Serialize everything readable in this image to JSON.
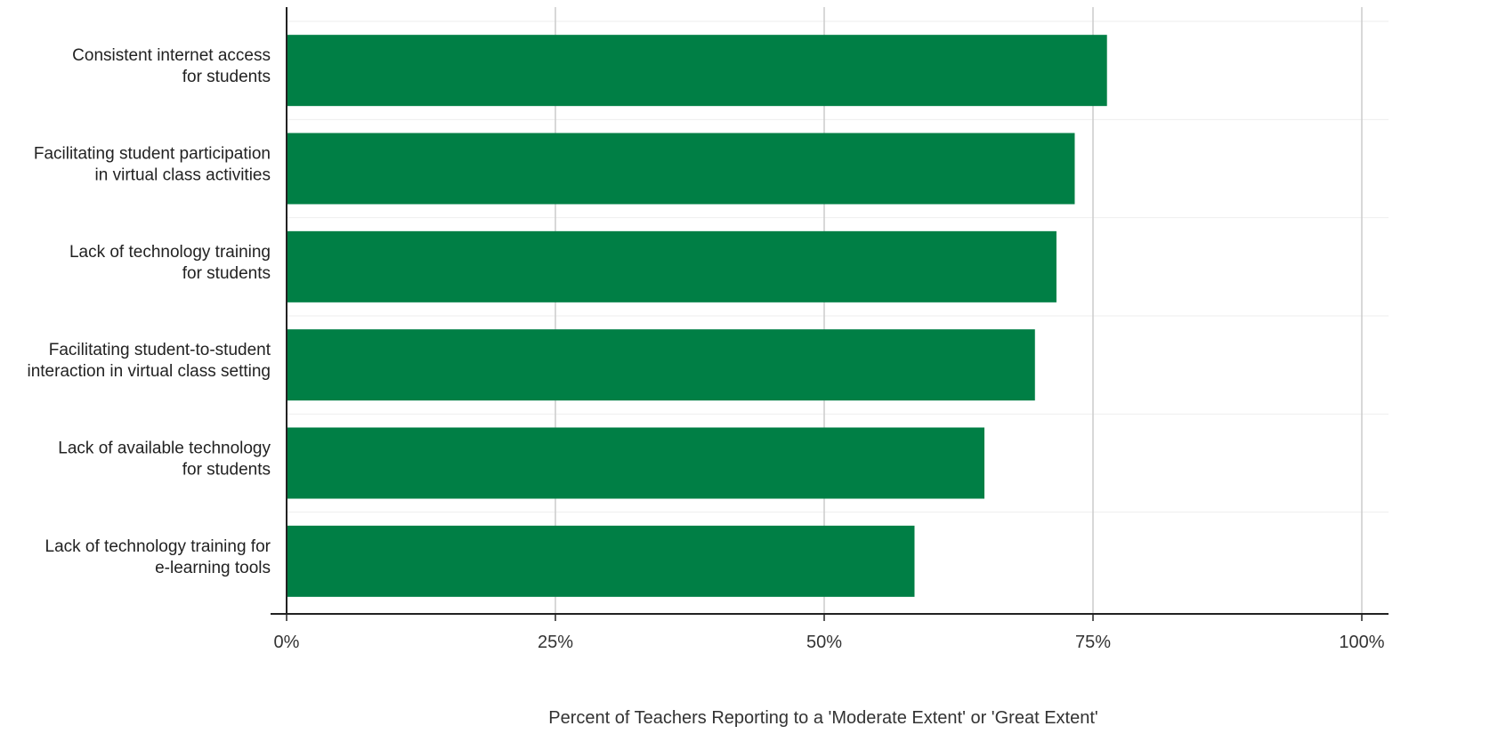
{
  "chart_data": {
    "type": "bar",
    "orientation": "horizontal",
    "title": "",
    "xlabel": "Percent of Teachers Reporting to a 'Moderate Extent' or 'Great Extent'",
    "ylabel": "",
    "xlim": [
      0,
      100
    ],
    "x_ticks": [
      0,
      25,
      50,
      75,
      100
    ],
    "x_tick_labels": [
      "0%",
      "25%",
      "50%",
      "75%",
      "100%"
    ],
    "grid": "vertical",
    "categories": [
      [
        "Consistent internet access",
        "for students"
      ],
      [
        "Facilitating student participation",
        "in virtual class activities"
      ],
      [
        "Lack of technology training",
        "for students"
      ],
      [
        "Facilitating student-to-student",
        "interaction in  virtual class setting"
      ],
      [
        "Lack of available technology",
        "for students"
      ],
      [
        "Lack of technology training for",
        "e-learning tools"
      ]
    ],
    "values": [
      76.3,
      73.3,
      71.6,
      69.6,
      64.9,
      58.4
    ],
    "bar_color": "#007f45"
  }
}
